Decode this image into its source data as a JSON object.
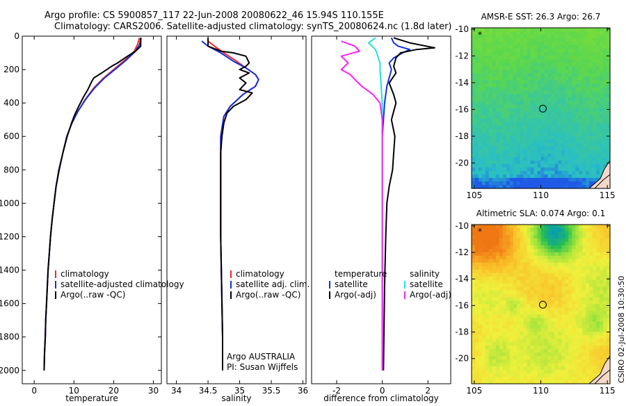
{
  "header": {
    "line1": "Argo profile: CS 5900857_117 22-Jun-2008 20080622_46 15.94S 110.155E",
    "line2": "Climatology: CARS2006. Satellite-adjusted climatology: synTS_20080624.nc (1.8d later)"
  },
  "side_caption": "CSIRO 02-Jul-2008 10:30:50",
  "colors": {
    "climatology": "#ff2020",
    "satellite": "#1030e0",
    "argo": "#000000",
    "cyan": "#20e0e0",
    "magenta": "#ff20ff",
    "map_marker": "#000000"
  },
  "chart_data": [
    {
      "type": "line",
      "name": "temperature",
      "xlabel": "temperature",
      "ylabel": "",
      "xlim": [
        -3,
        32
      ],
      "ylim": [
        0,
        2080
      ],
      "y_inverted": true,
      "xticks": [
        0,
        10,
        20,
        30
      ],
      "yticks": [
        0,
        200,
        400,
        600,
        800,
        1000,
        1200,
        1400,
        1600,
        1800,
        2000
      ],
      "legend": [
        "climatology",
        "satellite-adjusted climatology",
        "Argo(..raw -QC)"
      ],
      "series": [
        {
          "name": "climatology",
          "color": "climatology",
          "points": [
            [
              26.5,
              10
            ],
            [
              26,
              50
            ],
            [
              25.2,
              90
            ],
            [
              23,
              140
            ],
            [
              20.5,
              190
            ],
            [
              17.5,
              250
            ],
            [
              15,
              310
            ],
            [
              12.8,
              380
            ],
            [
              11,
              450
            ],
            [
              9.5,
              520
            ],
            [
              8.2,
              600
            ],
            [
              7.2,
              700
            ],
            [
              6.2,
              800
            ],
            [
              5.5,
              900
            ],
            [
              5,
              1000
            ],
            [
              4.5,
              1100
            ],
            [
              4.1,
              1200
            ],
            [
              3.8,
              1300
            ],
            [
              3.5,
              1400
            ],
            [
              3.3,
              1500
            ],
            [
              3.1,
              1600
            ],
            [
              2.9,
              1700
            ],
            [
              2.8,
              1800
            ],
            [
              2.6,
              1900
            ],
            [
              2.5,
              2000
            ]
          ]
        },
        {
          "name": "satellite",
          "color": "satellite",
          "points": [
            [
              26.9,
              10
            ],
            [
              26.5,
              50
            ],
            [
              25.5,
              90
            ],
            [
              23.3,
              140
            ],
            [
              20.8,
              190
            ],
            [
              17.7,
              250
            ],
            [
              15.2,
              310
            ],
            [
              12.9,
              380
            ],
            [
              11,
              450
            ],
            [
              9.5,
              520
            ],
            [
              8.2,
              600
            ],
            [
              7.2,
              700
            ],
            [
              6.2,
              800
            ],
            [
              5.5,
              900
            ],
            [
              5,
              1000
            ],
            [
              4.5,
              1100
            ],
            [
              4.1,
              1200
            ],
            [
              3.8,
              1300
            ],
            [
              3.5,
              1400
            ],
            [
              3.3,
              1500
            ],
            [
              3.1,
              1600
            ],
            [
              2.9,
              1700
            ],
            [
              2.8,
              1800
            ],
            [
              2.6,
              1900
            ],
            [
              2.5,
              2000
            ]
          ]
        },
        {
          "name": "argo",
          "color": "argo",
          "points": [
            [
              26.8,
              10
            ],
            [
              26.8,
              60
            ],
            [
              25.5,
              90
            ],
            [
              23.5,
              120
            ],
            [
              21,
              160
            ],
            [
              19.5,
              180
            ],
            [
              17,
              220
            ],
            [
              15,
              250
            ],
            [
              14.5,
              270
            ],
            [
              13.5,
              320
            ],
            [
              12.5,
              360
            ],
            [
              11.2,
              420
            ],
            [
              10.2,
              470
            ],
            [
              9.4,
              520
            ],
            [
              8.3,
              600
            ],
            [
              7.2,
              700
            ],
            [
              6.3,
              800
            ],
            [
              5.5,
              900
            ],
            [
              5,
              1000
            ],
            [
              4.5,
              1100
            ],
            [
              4.1,
              1200
            ],
            [
              3.8,
              1300
            ],
            [
              3.5,
              1400
            ],
            [
              3.3,
              1500
            ],
            [
              3.1,
              1600
            ],
            [
              2.9,
              1700
            ],
            [
              2.8,
              1800
            ],
            [
              2.6,
              1900
            ],
            [
              2.5,
              2000
            ]
          ]
        }
      ]
    },
    {
      "type": "line",
      "name": "salinity",
      "xlabel": "salinity",
      "ylabel": "",
      "xlim": [
        33.85,
        36.05
      ],
      "ylim": [
        0,
        2080
      ],
      "y_inverted": true,
      "xticks": [
        34,
        34.5,
        35,
        35.5,
        36
      ],
      "yticks": [],
      "legend": [
        "climatology",
        "satellite adj. clim.",
        "Argo(..raw -QC)"
      ],
      "annotation": [
        "Argo AUSTRALIA",
        "PI: Susan Wijffels"
      ],
      "series": [
        {
          "name": "climatology",
          "color": "climatology",
          "points": [
            [
              34.5,
              30
            ],
            [
              34.6,
              60
            ],
            [
              34.75,
              100
            ],
            [
              34.95,
              150
            ],
            [
              35.1,
              190
            ],
            [
              35.25,
              230
            ],
            [
              35.3,
              260
            ],
            [
              35.25,
              300
            ],
            [
              35.05,
              350
            ],
            [
              34.85,
              420
            ],
            [
              34.75,
              480
            ],
            [
              34.72,
              550
            ],
            [
              34.7,
              600
            ],
            [
              34.7,
              700
            ],
            [
              34.7,
              800
            ],
            [
              34.7,
              900
            ],
            [
              34.7,
              1000
            ],
            [
              34.7,
              1200
            ],
            [
              34.71,
              1400
            ],
            [
              34.72,
              1600
            ],
            [
              34.73,
              1800
            ],
            [
              34.73,
              2000
            ]
          ]
        },
        {
          "name": "satellite",
          "color": "satellite",
          "points": [
            [
              34.4,
              30
            ],
            [
              34.5,
              60
            ],
            [
              34.7,
              100
            ],
            [
              34.9,
              150
            ],
            [
              35.1,
              190
            ],
            [
              35.25,
              230
            ],
            [
              35.3,
              260
            ],
            [
              35.25,
              300
            ],
            [
              35.05,
              350
            ],
            [
              34.85,
              420
            ],
            [
              34.75,
              480
            ],
            [
              34.72,
              550
            ],
            [
              34.7,
              600
            ],
            [
              34.7,
              700
            ],
            [
              34.7,
              800
            ],
            [
              34.7,
              900
            ],
            [
              34.7,
              1000
            ],
            [
              34.7,
              1200
            ],
            [
              34.71,
              1400
            ],
            [
              34.72,
              1600
            ],
            [
              34.73,
              1800
            ],
            [
              34.73,
              2000
            ]
          ]
        },
        {
          "name": "argo",
          "color": "argo",
          "points": [
            [
              34.5,
              10
            ],
            [
              34.5,
              60
            ],
            [
              34.7,
              90
            ],
            [
              34.9,
              100
            ],
            [
              35.1,
              120
            ],
            [
              35.15,
              160
            ],
            [
              35.1,
              180
            ],
            [
              35.0,
              200
            ],
            [
              35.15,
              220
            ],
            [
              35.0,
              250
            ],
            [
              35.1,
              280
            ],
            [
              35.0,
              320
            ],
            [
              35.2,
              340
            ],
            [
              35.1,
              380
            ],
            [
              34.9,
              420
            ],
            [
              34.8,
              460
            ],
            [
              34.75,
              520
            ],
            [
              34.72,
              600
            ],
            [
              34.7,
              700
            ],
            [
              34.7,
              800
            ],
            [
              34.7,
              1000
            ],
            [
              34.7,
              1200
            ],
            [
              34.71,
              1400
            ],
            [
              34.72,
              1600
            ],
            [
              34.73,
              1800
            ],
            [
              34.73,
              2000
            ]
          ]
        }
      ]
    },
    {
      "type": "line",
      "name": "difference",
      "xlabel": "difference from climatology",
      "ylabel": "",
      "xlim": [
        -3.1,
        3.0
      ],
      "ylim": [
        0,
        2080
      ],
      "y_inverted": true,
      "xticks": [
        -2,
        0,
        2
      ],
      "yticks": [],
      "legend_groups": [
        {
          "title": "temperature",
          "items": [
            "satellite",
            "Argo(-adj)"
          ]
        },
        {
          "title": "salinity",
          "items": [
            "satellite",
            "Argo(-adj)"
          ]
        }
      ],
      "series": [
        {
          "name": "temperature satellite",
          "color": "satellite",
          "points": [
            [
              0.4,
              10
            ],
            [
              0.5,
              40
            ],
            [
              0.7,
              60
            ],
            [
              1.2,
              80
            ],
            [
              0.9,
              100
            ],
            [
              0.5,
              130
            ],
            [
              0.3,
              160
            ],
            [
              0.4,
              200
            ],
            [
              0.3,
              250
            ],
            [
              0.2,
              300
            ],
            [
              0.1,
              400
            ],
            [
              0.05,
              500
            ],
            [
              0,
              600
            ],
            [
              0,
              800
            ],
            [
              0,
              1200
            ],
            [
              0,
              1600
            ],
            [
              0,
              2000
            ]
          ]
        },
        {
          "name": "temperature argo",
          "color": "argo",
          "points": [
            [
              0.5,
              10
            ],
            [
              1.2,
              40
            ],
            [
              2.3,
              70
            ],
            [
              1.5,
              80
            ],
            [
              0.8,
              100
            ],
            [
              0.6,
              130
            ],
            [
              0.5,
              180
            ],
            [
              0.6,
              220
            ],
            [
              0.3,
              280
            ],
            [
              0.5,
              350
            ],
            [
              0.6,
              400
            ],
            [
              0.5,
              450
            ],
            [
              0.4,
              500
            ],
            [
              0.55,
              600
            ],
            [
              0.5,
              700
            ],
            [
              0.45,
              800
            ],
            [
              0.3,
              900
            ],
            [
              0.2,
              1000
            ],
            [
              0.15,
              1200
            ],
            [
              0.1,
              1500
            ],
            [
              0.05,
              2000
            ]
          ]
        },
        {
          "name": "salinity satellite",
          "color": "cyan",
          "points": [
            [
              -0.3,
              10
            ],
            [
              -0.6,
              40
            ],
            [
              -0.3,
              80
            ],
            [
              -0.2,
              120
            ],
            [
              -0.1,
              160
            ],
            [
              -0.1,
              200
            ],
            [
              -0.05,
              300
            ],
            [
              0,
              400
            ],
            [
              0,
              600
            ],
            [
              0,
              1000
            ],
            [
              0,
              1500
            ],
            [
              0,
              2000
            ]
          ]
        },
        {
          "name": "salinity argo",
          "color": "magenta",
          "points": [
            [
              -1.8,
              30
            ],
            [
              -1.2,
              60
            ],
            [
              -1.0,
              90
            ],
            [
              -1.8,
              120
            ],
            [
              -1.5,
              160
            ],
            [
              -1.8,
              200
            ],
            [
              -1.4,
              230
            ],
            [
              -1.2,
              260
            ],
            [
              -0.9,
              300
            ],
            [
              -0.4,
              350
            ],
            [
              -0.1,
              400
            ],
            [
              0,
              500
            ],
            [
              0,
              700
            ],
            [
              0,
              1000
            ],
            [
              0,
              1500
            ],
            [
              0,
              2000
            ]
          ]
        }
      ]
    },
    {
      "type": "heatmap",
      "name": "sst-map",
      "title": "AMSR-E SST: 26.3 Argo: 26.7",
      "xlim": [
        104.8,
        115.2
      ],
      "ylim": [
        -21.9,
        -9.9
      ],
      "xticks": [
        105,
        110,
        115
      ],
      "yticks": [
        -10,
        -12,
        -14,
        -16,
        -18,
        -20
      ],
      "argo_position": [
        110.155,
        -15.94
      ]
    },
    {
      "type": "heatmap",
      "name": "sla-map",
      "title": "Altimetric SLA: 0.074 Argo: 0.1",
      "xlim": [
        104.8,
        115.2
      ],
      "ylim": [
        -21.9,
        -9.9
      ],
      "xticks": [
        105,
        110,
        115
      ],
      "yticks": [
        -10,
        -12,
        -14,
        -16,
        -18,
        -20
      ],
      "argo_position": [
        110.155,
        -15.94
      ]
    }
  ]
}
